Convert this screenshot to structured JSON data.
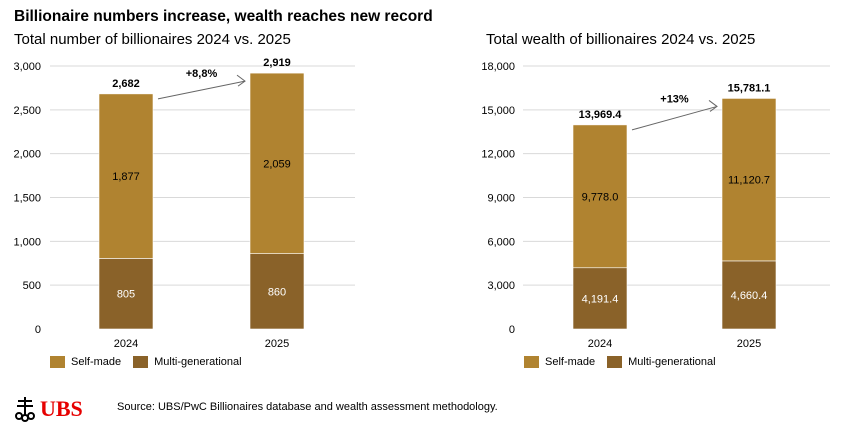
{
  "title": "Billionaire numbers increase, wealth reaches new record",
  "colors": {
    "self_made": "#B08330",
    "multi_generational": "#8A6229",
    "grid": "#d9d9d9"
  },
  "legend": {
    "self_made": "Self-made",
    "multi_generational": "Multi-generational"
  },
  "source": "Source: UBS/PwC Billionaires database and wealth assessment methodology.",
  "logo": {
    "text": "UBS",
    "icon": "keys-icon"
  },
  "chart_data": [
    {
      "type": "bar",
      "stacked": true,
      "title": "Total number of billionaires 2024 vs. 2025",
      "categories": [
        "2024",
        "2025"
      ],
      "series": [
        {
          "name": "Multi-generational",
          "values": [
            805,
            860
          ],
          "labels": [
            "805",
            "860"
          ]
        },
        {
          "name": "Self-made",
          "values": [
            1877,
            2059
          ],
          "labels": [
            "1,877",
            "2,059"
          ]
        }
      ],
      "totals": [
        "2,682",
        "2,919"
      ],
      "annotation": "+8,8%",
      "ylim": [
        0,
        3000
      ],
      "yticks": [
        0,
        500,
        1000,
        1500,
        2000,
        2500,
        3000
      ],
      "ytick_labels": [
        "0",
        "500",
        "1,000",
        "1,500",
        "2,000",
        "2,500",
        "3,000"
      ],
      "grid": true,
      "legend": "bottom-left"
    },
    {
      "type": "bar",
      "stacked": true,
      "title": "Total wealth of billionaires 2024 vs. 2025",
      "categories": [
        "2024",
        "2025"
      ],
      "series": [
        {
          "name": "Multi-generational",
          "values": [
            4191.4,
            4660.4
          ],
          "labels": [
            "4,191.4",
            "4,660.4"
          ]
        },
        {
          "name": "Self-made",
          "values": [
            9778.0,
            11120.7
          ],
          "labels": [
            "9,778.0",
            "11,120.7"
          ]
        }
      ],
      "totals": [
        "13,969.4",
        "15,781.1"
      ],
      "annotation": "+13%",
      "ylim": [
        0,
        18000
      ],
      "yticks": [
        0,
        3000,
        6000,
        9000,
        12000,
        15000,
        18000
      ],
      "ytick_labels": [
        "0",
        "3,000",
        "6,000",
        "9,000",
        "12,000",
        "15,000",
        "18,000"
      ],
      "grid": true,
      "legend": "bottom-left"
    }
  ]
}
